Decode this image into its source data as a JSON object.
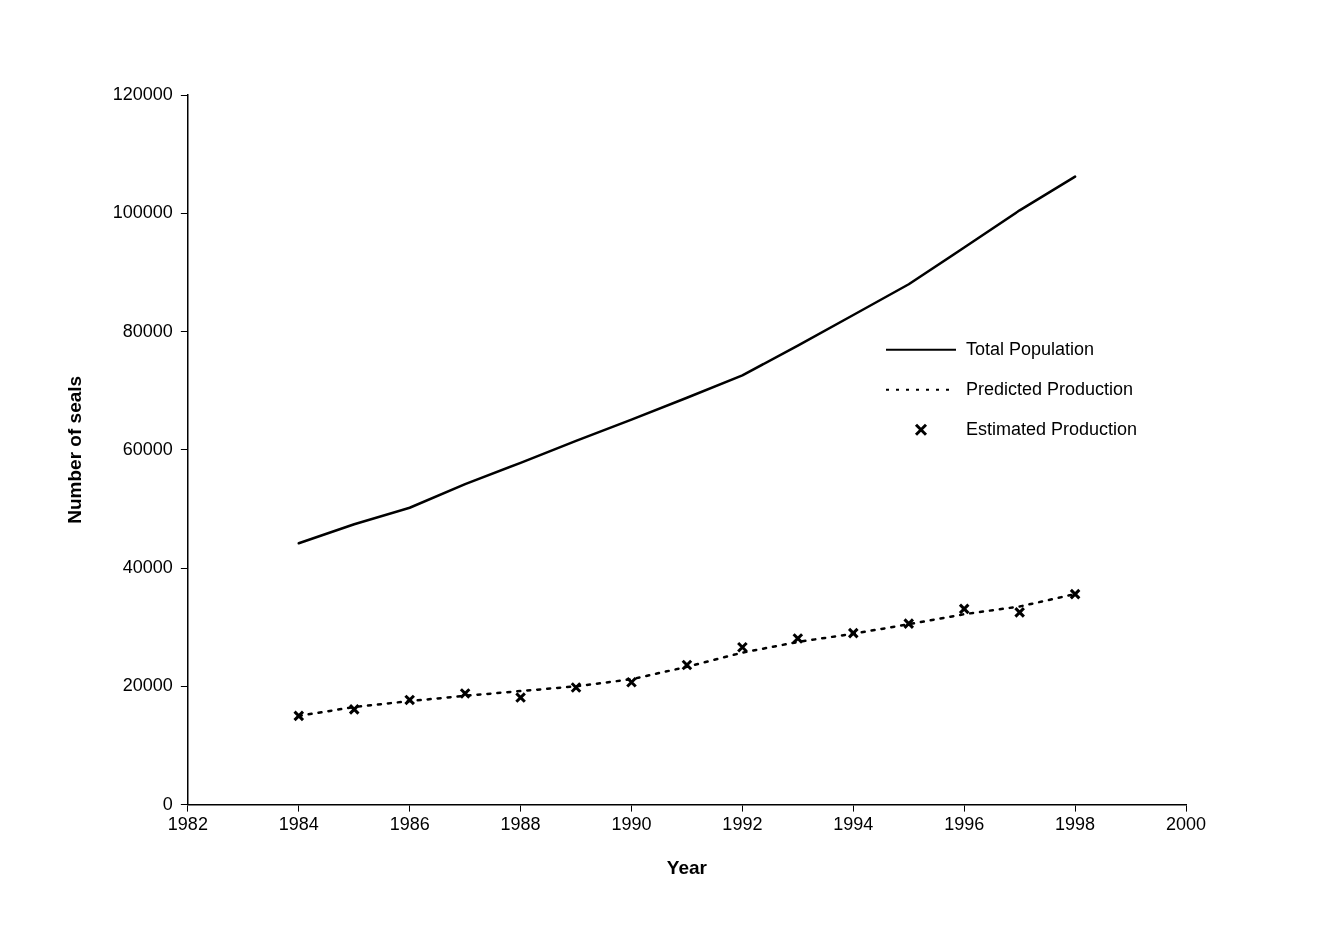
{
  "chart_data": {
    "type": "line",
    "xlabel": "Year",
    "ylabel": "Number of seals",
    "x": [
      1984,
      1985,
      1986,
      1987,
      1988,
      1989,
      1990,
      1991,
      1992,
      1993,
      1994,
      1995,
      1996,
      1997,
      1998
    ],
    "series": [
      {
        "name": "Total Population",
        "color": "#000000",
        "line_style": "solid",
        "marker": "none",
        "values": [
          44200,
          47400,
          50200,
          54200,
          57800,
          61500,
          65100,
          68800,
          72600,
          77600,
          82800,
          88000,
          94200,
          100500,
          106200
        ]
      },
      {
        "name": "Predicted Production",
        "color": "#000000",
        "line_style": "dotted",
        "marker": "none",
        "values": [
          15000,
          16500,
          17500,
          18400,
          19200,
          20000,
          21200,
          23300,
          25700,
          27500,
          28900,
          30500,
          32200,
          33500,
          35600
        ]
      },
      {
        "name": "Estimated Production",
        "type": "scatter",
        "color": "#000000",
        "marker": "cross",
        "values": [
          15000,
          16100,
          17700,
          18800,
          18100,
          19800,
          20700,
          23600,
          26600,
          28100,
          29000,
          30600,
          33100,
          32500,
          35600
        ]
      }
    ],
    "xlim": [
      1982,
      2000
    ],
    "xticks": [
      1982,
      1984,
      1986,
      1988,
      1990,
      1992,
      1994,
      1996,
      1998,
      2000
    ],
    "ylim": [
      0,
      120000
    ],
    "yticks": [
      0,
      20000,
      40000,
      60000,
      80000,
      100000,
      120000
    ],
    "grid": false,
    "legend": "right"
  }
}
